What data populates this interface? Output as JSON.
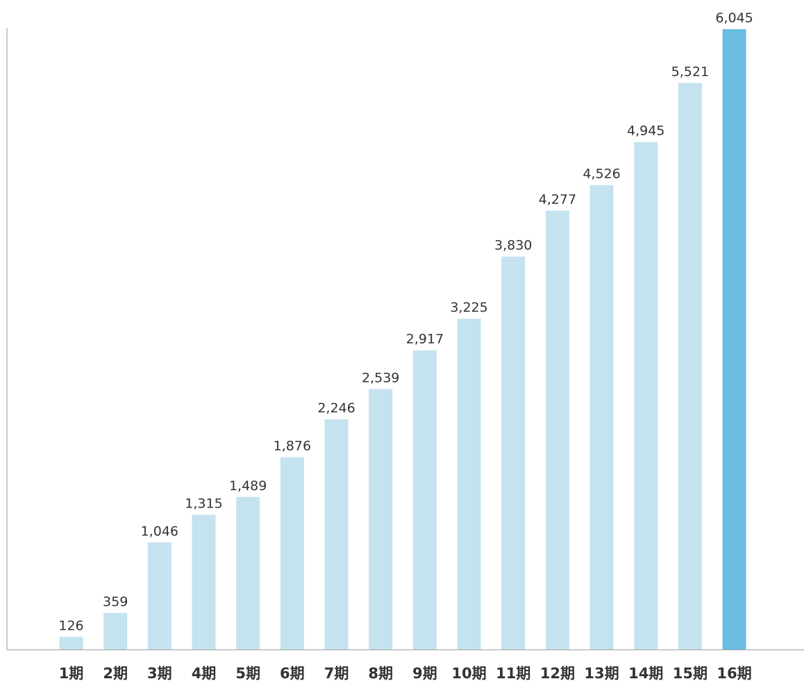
{
  "chart_data": {
    "type": "bar",
    "title": "",
    "xlabel": "",
    "ylabel": "",
    "categories": [
      "1期",
      "2期",
      "3期",
      "4期",
      "5期",
      "6期",
      "7期",
      "8期",
      "9期",
      "10期",
      "11期",
      "12期",
      "13期",
      "14期",
      "15期",
      "16期"
    ],
    "values": [
      126,
      359,
      1046,
      1315,
      1489,
      1876,
      2246,
      2539,
      2917,
      3225,
      3830,
      4277,
      4526,
      4945,
      5521,
      6045
    ],
    "value_labels": [
      "126",
      "359",
      "1,046",
      "1,315",
      "1,489",
      "1,876",
      "2,246",
      "2,539",
      "2,917",
      "3,225",
      "3,830",
      "4,277",
      "4,526",
      "4,945",
      "5,521",
      "6,045"
    ],
    "ylim": [
      0,
      6045
    ],
    "grid": false,
    "legend": "none",
    "highlight_index": 15,
    "colors": {
      "bar": "#c5e2ef",
      "bar_highlight": "#6abde2",
      "axis": "#999999",
      "text": "#333333"
    }
  }
}
